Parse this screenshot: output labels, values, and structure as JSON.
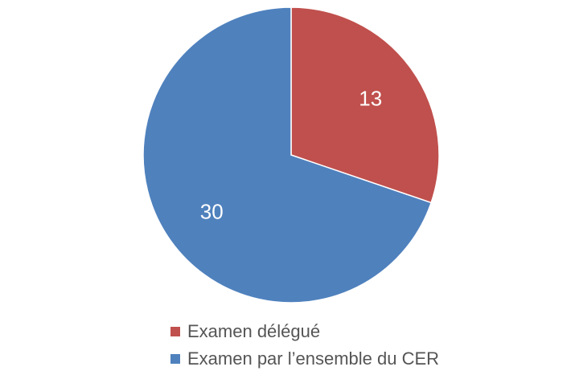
{
  "chart_data": {
    "type": "pie",
    "title": "",
    "categories": [
      "Examen délégué",
      "Examen par l’ensemble du CER"
    ],
    "values": [
      13,
      30
    ],
    "data_labels": [
      "13",
      "30"
    ],
    "colors": [
      "#C0504D",
      "#4F81BD"
    ],
    "legend_position": "bottom",
    "start_angle": "12 o'clock, clockwise"
  }
}
